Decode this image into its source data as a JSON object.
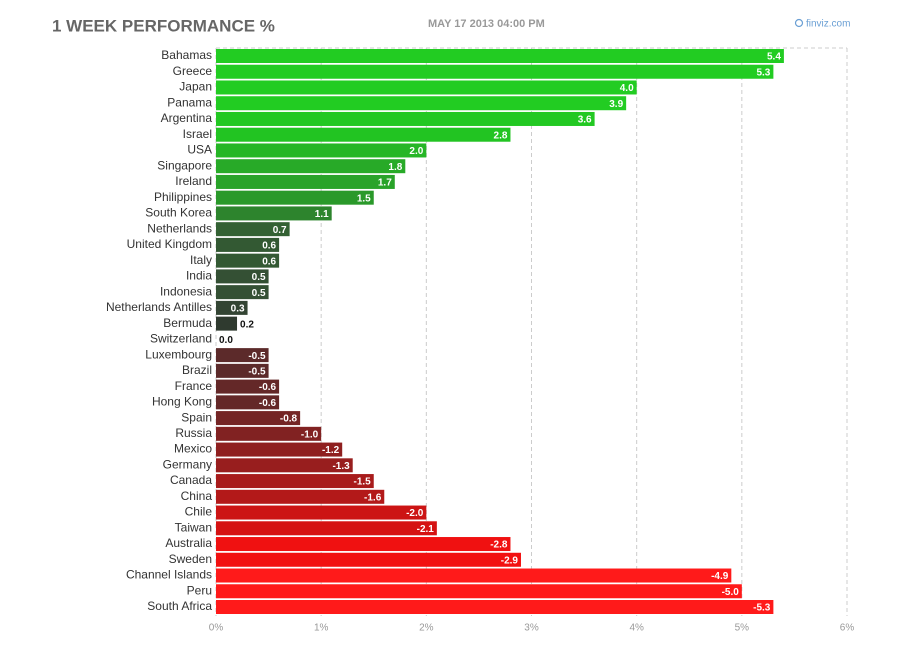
{
  "chart_data": {
    "type": "bar",
    "orientation": "horizontal",
    "title": "1 WEEK PERFORMANCE %",
    "subtitle": "MAY 17 2013 04:00 PM",
    "source": "finviz.com",
    "categories": [
      "Bahamas",
      "Greece",
      "Japan",
      "Panama",
      "Argentina",
      "Israel",
      "USA",
      "Singapore",
      "Ireland",
      "Philippines",
      "South Korea",
      "Netherlands",
      "United Kingdom",
      "Italy",
      "India",
      "Indonesia",
      "Netherlands Antilles",
      "Bermuda",
      "Switzerland",
      "Luxembourg",
      "Brazil",
      "France",
      "Hong Kong",
      "Spain",
      "Russia",
      "Mexico",
      "Germany",
      "Canada",
      "China",
      "Chile",
      "Taiwan",
      "Australia",
      "Sweden",
      "Channel Islands",
      "Peru",
      "South Africa"
    ],
    "values": [
      5.4,
      5.3,
      4.0,
      3.9,
      3.6,
      2.8,
      2.0,
      1.8,
      1.7,
      1.5,
      1.1,
      0.7,
      0.6,
      0.6,
      0.5,
      0.5,
      0.3,
      0.2,
      0.0,
      -0.5,
      -0.5,
      -0.6,
      -0.6,
      -0.8,
      -1.0,
      -1.2,
      -1.3,
      -1.5,
      -1.6,
      -2.0,
      -2.1,
      -2.8,
      -2.9,
      -4.9,
      -5.0,
      -5.3
    ],
    "value_labels": [
      "5.4",
      "5.3",
      "4.0",
      "3.9",
      "3.6",
      "2.8",
      "2.0",
      "1.8",
      "1.7",
      "1.5",
      "1.1",
      "0.7",
      "0.6",
      "0.6",
      "0.5",
      "0.5",
      "0.3",
      "0.2",
      "0.0",
      "-0.5",
      "-0.5",
      "-0.6",
      "-0.6",
      "-0.8",
      "-1.0",
      "-1.2",
      "-1.3",
      "-1.5",
      "-1.6",
      "-2.0",
      "-2.1",
      "-2.8",
      "-2.9",
      "-4.9",
      "-5.0",
      "-5.3"
    ],
    "colors": [
      "#22cc22",
      "#22cc22",
      "#22cc22",
      "#22cc22",
      "#22c822",
      "#22c422",
      "#26b626",
      "#28aa28",
      "#29a329",
      "#2a992a",
      "#2d842d",
      "#336133",
      "#335933",
      "#335933",
      "#345034",
      "#345034",
      "#334433",
      "#2f3a2f",
      "#333333",
      "#5c2a2a",
      "#5c2a2a",
      "#642828",
      "#642828",
      "#742525",
      "#812222",
      "#8f2020",
      "#981e1e",
      "#a81b1b",
      "#b31919",
      "#cc1414",
      "#d51212",
      "#f01111",
      "#f21111",
      "#ff1a1a",
      "#ff1a1a",
      "#ff1a1a"
    ],
    "xlim": [
      0,
      6
    ],
    "xticks": [
      {
        "value": 0,
        "label": "0%"
      },
      {
        "value": 1,
        "label": "1%"
      },
      {
        "value": 2,
        "label": "2%"
      },
      {
        "value": 3,
        "label": "3%"
      },
      {
        "value": 4,
        "label": "4%"
      },
      {
        "value": 5,
        "label": "5%"
      },
      {
        "value": 6,
        "label": "6%"
      }
    ],
    "grid": true
  }
}
